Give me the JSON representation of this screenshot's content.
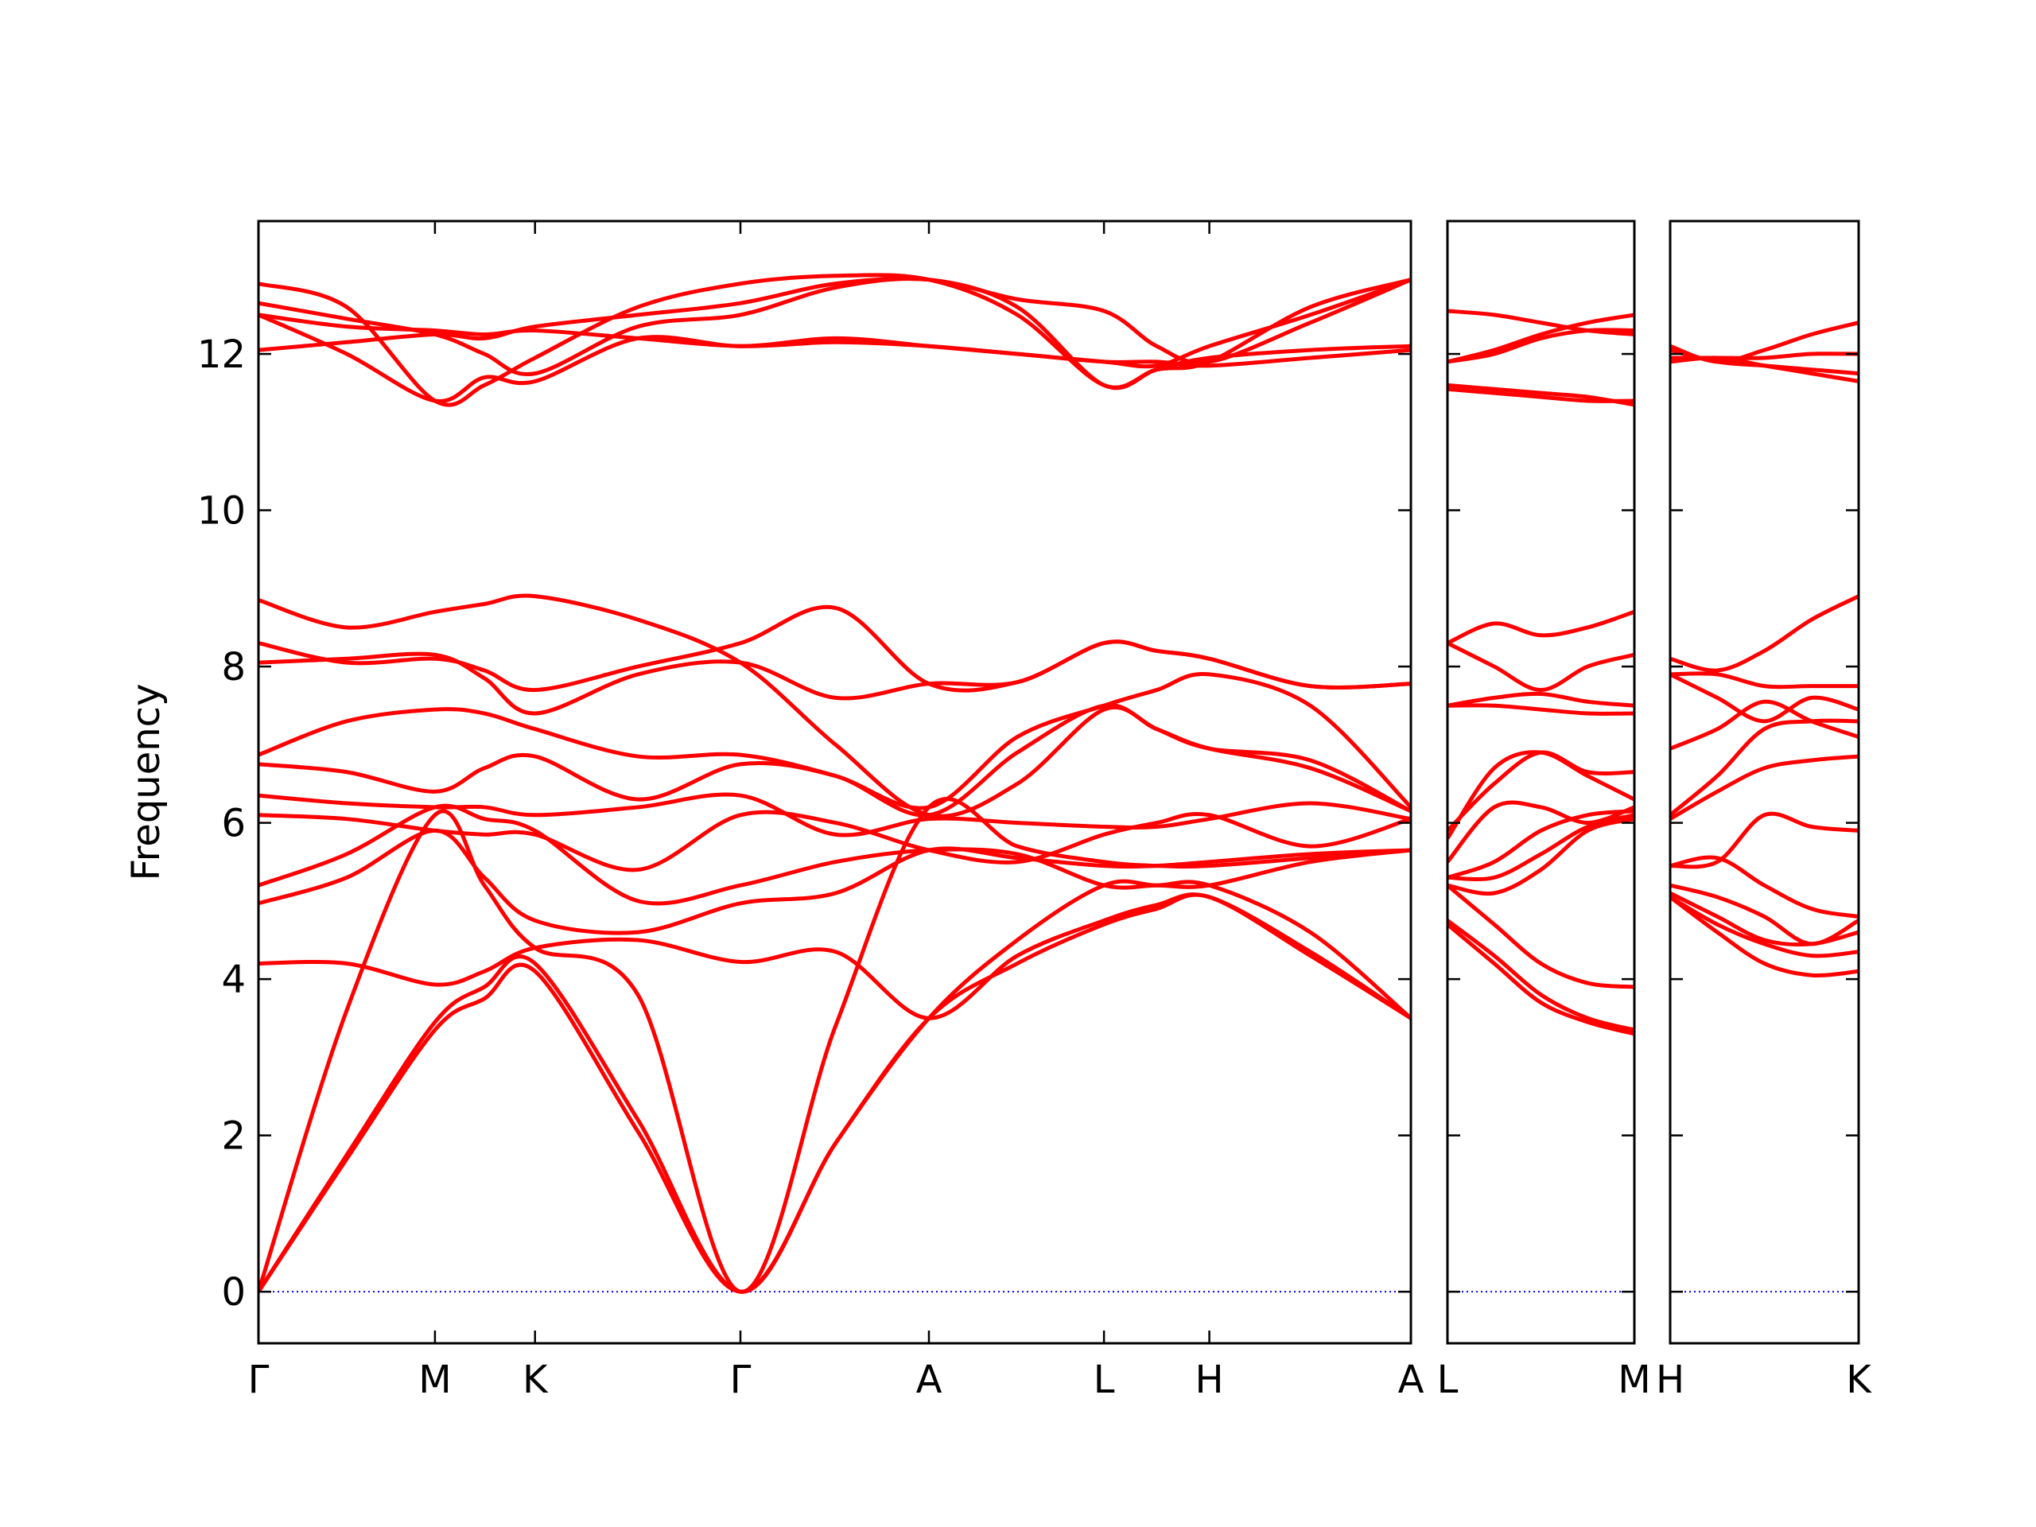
{
  "chart_data": [
    {
      "type": "line",
      "ylabel": "Frequency",
      "color": "#ff0000",
      "xlim": [
        0,
        6.53
      ],
      "ylim": [
        -0.66,
        13.7
      ],
      "xticks": [
        {
          "value": 0,
          "label": "Γ"
        },
        {
          "value": 1,
          "label": "M"
        },
        {
          "value": 1.567,
          "label": "K"
        },
        {
          "value": 2.731,
          "label": "Γ"
        },
        {
          "value": 3.799,
          "label": "A"
        },
        {
          "value": 4.791,
          "label": "L"
        },
        {
          "value": 5.388,
          "label": "H"
        },
        {
          "value": 6.53,
          "label": "A"
        }
      ],
      "yticks": [
        0,
        2,
        4,
        6,
        8,
        10,
        12
      ],
      "ytick_labels": true,
      "hlines": [
        {
          "y": 0,
          "color": "#0000ff"
        }
      ],
      "x": [
        0,
        0.5,
        1,
        1.28,
        1.567,
        2.15,
        2.731,
        3.27,
        3.799,
        4.3,
        4.791,
        5.09,
        5.388,
        5.96,
        6.53
      ],
      "series": [
        {
          "values": [
            0,
            1.7,
            3.35,
            3.75,
            4.1,
            2.05,
            0,
            1.9,
            3.5,
            4.2,
            4.7,
            4.9,
            5.05,
            4.3,
            3.5
          ]
        },
        {
          "values": [
            0,
            1.75,
            3.45,
            3.9,
            4.2,
            2.2,
            0,
            1.9,
            3.5,
            4.5,
            5.2,
            5.2,
            5.2,
            4.6,
            3.5
          ]
        },
        {
          "values": [
            0,
            3.6,
            6.1,
            5.2,
            4.4,
            3.8,
            0,
            3.4,
            6.2,
            5.7,
            5.5,
            5.45,
            5.45,
            5.55,
            5.65
          ]
        },
        {
          "values": [
            4.2,
            4.2,
            3.93,
            4.1,
            4.4,
            4.5,
            4.22,
            4.35,
            3.5,
            4.3,
            4.75,
            4.95,
            5.05,
            4.35,
            3.5
          ]
        },
        {
          "values": [
            4.97,
            5.3,
            5.9,
            5.3,
            4.75,
            4.6,
            4.97,
            5.1,
            5.65,
            5.55,
            5.45,
            5.45,
            5.5,
            5.6,
            5.65
          ]
        },
        {
          "values": [
            5.2,
            5.6,
            6.2,
            6.05,
            5.9,
            5.0,
            5.2,
            5.5,
            5.65,
            5.6,
            5.2,
            5.2,
            5.2,
            5.5,
            5.65
          ]
        },
        {
          "values": [
            6.1,
            6.05,
            5.9,
            5.85,
            5.85,
            5.4,
            6.1,
            6.0,
            5.65,
            5.5,
            5.85,
            6.0,
            6.1,
            5.7,
            6.05
          ]
        },
        {
          "values": [
            6.35,
            6.25,
            6.2,
            6.2,
            6.1,
            6.2,
            6.35,
            5.85,
            6.05,
            6.0,
            5.95,
            5.95,
            6.05,
            6.25,
            6.05
          ]
        },
        {
          "values": [
            6.75,
            6.65,
            6.4,
            6.7,
            6.85,
            6.3,
            6.75,
            6.6,
            6.1,
            6.9,
            7.5,
            7.2,
            6.95,
            6.8,
            6.15
          ]
        },
        {
          "values": [
            6.87,
            7.3,
            7.45,
            7.4,
            7.2,
            6.85,
            6.87,
            6.6,
            6.2,
            7.1,
            7.5,
            7.7,
            7.9,
            7.5,
            6.2
          ]
        },
        {
          "values": [
            8.05,
            8.1,
            8.15,
            7.85,
            7.4,
            7.9,
            8.05,
            7.6,
            7.78,
            7.8,
            8.3,
            8.2,
            8.1,
            7.75,
            7.78
          ]
        },
        {
          "values": [
            8.3,
            8.05,
            8.1,
            7.95,
            7.7,
            8.0,
            8.3,
            8.75,
            7.78,
            7.8,
            8.3,
            8.2,
            8.1,
            7.75,
            7.78
          ]
        },
        {
          "values": [
            8.85,
            8.5,
            8.7,
            8.8,
            8.9,
            8.6,
            8.05,
            7.0,
            6.1,
            6.5,
            7.45,
            7.2,
            6.95,
            6.7,
            6.15
          ]
        },
        {
          "values": [
            12.05,
            12.15,
            12.25,
            12.2,
            12.35,
            12.5,
            12.65,
            12.9,
            12.95,
            12.7,
            12.55,
            12.1,
            11.9,
            12.4,
            12.95
          ]
        },
        {
          "values": [
            12.5,
            12.35,
            12.3,
            12.25,
            12.3,
            12.2,
            12.1,
            12.15,
            12.1,
            12.0,
            11.9,
            11.9,
            11.85,
            11.95,
            12.05
          ]
        },
        {
          "values": [
            12.65,
            12.45,
            12.25,
            12.0,
            11.75,
            12.35,
            12.5,
            12.85,
            12.95,
            12.6,
            11.6,
            11.8,
            11.95,
            12.05,
            12.1
          ]
        },
        {
          "values": [
            12.9,
            12.6,
            11.4,
            11.6,
            11.95,
            12.6,
            12.9,
            13.0,
            12.95,
            12.5,
            11.6,
            11.8,
            11.9,
            12.6,
            12.95
          ]
        },
        {
          "values": [
            12.5,
            12.0,
            11.4,
            11.7,
            11.65,
            12.2,
            12.1,
            12.2,
            12.1,
            12.0,
            11.9,
            11.85,
            12.1,
            12.5,
            12.95
          ]
        }
      ]
    },
    {
      "type": "line",
      "color": "#ff0000",
      "xlim": [
        0,
        1.06
      ],
      "ylim": [
        -0.66,
        13.7
      ],
      "xticks": [
        {
          "value": 0,
          "label": "L"
        },
        {
          "value": 1.06,
          "label": "M"
        }
      ],
      "yticks": [
        0,
        2,
        4,
        6,
        8,
        10,
        12
      ],
      "ytick_labels": false,
      "hlines": [
        {
          "y": 0,
          "color": "#0000ff"
        }
      ],
      "x": [
        0,
        0.265,
        0.53,
        0.795,
        1.06
      ],
      "series": [
        {
          "values": [
            4.75,
            4.3,
            3.8,
            3.5,
            3.35
          ]
        },
        {
          "values": [
            4.7,
            4.2,
            3.7,
            3.45,
            3.3
          ]
        },
        {
          "values": [
            5.2,
            4.7,
            4.2,
            3.95,
            3.9
          ]
        },
        {
          "values": [
            5.2,
            5.1,
            5.4,
            5.9,
            6.05
          ]
        },
        {
          "values": [
            5.3,
            5.3,
            5.6,
            5.95,
            6.1
          ]
        },
        {
          "values": [
            5.3,
            5.5,
            5.9,
            6.1,
            6.15
          ]
        },
        {
          "values": [
            5.5,
            6.2,
            6.2,
            6.0,
            6.2
          ]
        },
        {
          "values": [
            5.8,
            6.7,
            6.9,
            6.6,
            6.3
          ]
        },
        {
          "values": [
            5.9,
            6.5,
            6.9,
            6.65,
            6.65
          ]
        },
        {
          "values": [
            7.5,
            7.5,
            7.45,
            7.4,
            7.4
          ]
        },
        {
          "values": [
            7.5,
            7.6,
            7.65,
            7.55,
            7.5
          ]
        },
        {
          "values": [
            8.3,
            8.0,
            7.7,
            8.0,
            8.15
          ]
        },
        {
          "values": [
            8.3,
            8.55,
            8.4,
            8.5,
            8.7
          ]
        },
        {
          "values": [
            11.55,
            11.5,
            11.45,
            11.4,
            11.4
          ]
        },
        {
          "values": [
            11.6,
            11.55,
            11.5,
            11.45,
            11.35
          ]
        },
        {
          "values": [
            11.9,
            12.0,
            12.2,
            12.3,
            12.3
          ]
        },
        {
          "values": [
            11.9,
            12.05,
            12.25,
            12.4,
            12.5
          ]
        },
        {
          "values": [
            12.55,
            12.5,
            12.4,
            12.3,
            12.25
          ]
        }
      ]
    },
    {
      "type": "line",
      "color": "#ff0000",
      "xlim": [
        0,
        1.067
      ],
      "ylim": [
        -0.66,
        13.7
      ],
      "xticks": [
        {
          "value": 0,
          "label": "H"
        },
        {
          "value": 1.067,
          "label": "K"
        }
      ],
      "yticks": [
        0,
        2,
        4,
        6,
        8,
        10,
        12
      ],
      "ytick_labels": false,
      "hlines": [
        {
          "y": 0,
          "color": "#0000ff"
        }
      ],
      "x": [
        0,
        0.267,
        0.533,
        0.8,
        1.067
      ],
      "series": [
        {
          "values": [
            5.05,
            4.7,
            4.45,
            4.3,
            4.35
          ]
        },
        {
          "values": [
            5.05,
            4.6,
            4.2,
            4.05,
            4.1
          ]
        },
        {
          "values": [
            5.1,
            4.8,
            4.5,
            4.45,
            4.6
          ]
        },
        {
          "values": [
            5.2,
            5.05,
            4.8,
            4.45,
            4.75
          ]
        },
        {
          "values": [
            5.45,
            5.55,
            5.2,
            4.9,
            4.8
          ]
        },
        {
          "values": [
            5.45,
            5.5,
            6.1,
            5.95,
            5.9
          ]
        },
        {
          "values": [
            6.05,
            6.4,
            6.7,
            6.8,
            6.85
          ]
        },
        {
          "values": [
            6.1,
            6.6,
            7.2,
            7.3,
            7.3
          ]
        },
        {
          "values": [
            6.95,
            7.2,
            7.55,
            7.3,
            7.1
          ]
        },
        {
          "values": [
            7.9,
            7.6,
            7.3,
            7.6,
            7.45
          ]
        },
        {
          "values": [
            7.9,
            7.9,
            7.75,
            7.75,
            7.75
          ]
        },
        {
          "values": [
            8.1,
            7.95,
            8.2,
            8.6,
            8.9
          ]
        },
        {
          "values": [
            11.9,
            11.95,
            11.85,
            11.75,
            11.65
          ]
        },
        {
          "values": [
            11.95,
            11.95,
            11.95,
            12.0,
            12.0
          ]
        },
        {
          "values": [
            12.05,
            11.9,
            11.85,
            11.8,
            11.75
          ]
        },
        {
          "values": [
            12.1,
            11.9,
            12.05,
            12.25,
            12.4
          ]
        }
      ]
    }
  ]
}
